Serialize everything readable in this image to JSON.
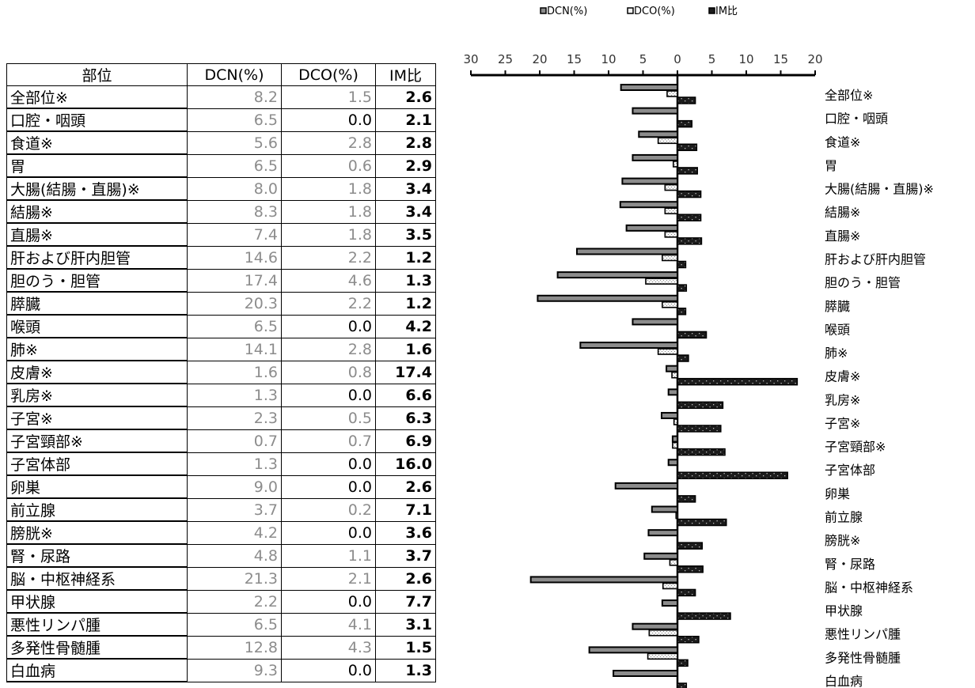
{
  "table": {
    "headers": [
      "部位",
      "DCN(%)",
      "DCO(%)",
      "IM比"
    ],
    "rows": [
      [
        "全部位※",
        "8.2",
        "1.5",
        "2.6"
      ],
      [
        "口腔・咽頭",
        "6.5",
        "0.0",
        "2.1"
      ],
      [
        "食道※",
        "5.6",
        "2.8",
        "2.8"
      ],
      [
        "胃",
        "6.5",
        "0.6",
        "2.9"
      ],
      [
        "大腸(結腸・直腸)※",
        "8.0",
        "1.8",
        "3.4"
      ],
      [
        "結腸※",
        "8.3",
        "1.8",
        "3.4"
      ],
      [
        "直腸※",
        "7.4",
        "1.8",
        "3.5"
      ],
      [
        "肝および肝内胆管",
        "14.6",
        "2.2",
        "1.2"
      ],
      [
        "胆のう・胆管",
        "17.4",
        "4.6",
        "1.3"
      ],
      [
        "膵臓",
        "20.3",
        "2.2",
        "1.2"
      ],
      [
        "喉頭",
        "6.5",
        "0.0",
        "4.2"
      ],
      [
        "肺※",
        "14.1",
        "2.8",
        "1.6"
      ],
      [
        "皮膚※",
        "1.6",
        "0.8",
        "17.4"
      ],
      [
        "乳房※",
        "1.3",
        "0.0",
        "6.6"
      ],
      [
        "子宮※",
        "2.3",
        "0.5",
        "6.3"
      ],
      [
        "子宮頸部※",
        "0.7",
        "0.7",
        "6.9"
      ],
      [
        "子宮体部",
        "1.3",
        "0.0",
        "16.0"
      ],
      [
        "卵巣",
        "9.0",
        "0.0",
        "2.6"
      ],
      [
        "前立腺",
        "3.7",
        "0.2",
        "7.1"
      ],
      [
        "膀胱※",
        "4.2",
        "0.0",
        "3.6"
      ],
      [
        "腎・尿路",
        "4.8",
        "1.1",
        "3.7"
      ],
      [
        "脳・中枢神経系",
        "21.3",
        "2.1",
        "2.6"
      ],
      [
        "甲状腺",
        "2.2",
        "0.0",
        "7.7"
      ],
      [
        "悪性リンパ腫",
        "6.5",
        "4.1",
        "3.1"
      ],
      [
        "多発性骨髄腫",
        "12.8",
        "4.3",
        "1.5"
      ],
      [
        "白血病",
        "9.3",
        "0.0",
        "1.3"
      ]
    ]
  },
  "chart_data": {
    "type": "bar",
    "orientation": "horizontal",
    "categories": [
      "全部位※",
      "口腔・咽頭",
      "食道※",
      "胃",
      "大腸(結腸・直腸)※",
      "結腸※",
      "直腸※",
      "肝および肝内胆管",
      "胆のう・胆管",
      "膵臓",
      "喉頭",
      "肺※",
      "皮膚※",
      "乳房※",
      "子宮※",
      "子宮頸部※",
      "子宮体部",
      "卵巣",
      "前立腺",
      "膀胱※",
      "腎・尿路",
      "脳・中枢神経系",
      "甲状腺",
      "悪性リンパ腫",
      "多発性骨髄腫",
      "白血病"
    ],
    "series": [
      {
        "name": "DCN(%)",
        "direction": "left",
        "color": "#8c8c8c",
        "values": [
          8.2,
          6.5,
          5.6,
          6.5,
          8.0,
          8.3,
          7.4,
          14.6,
          17.4,
          20.3,
          6.5,
          14.1,
          1.6,
          1.3,
          2.3,
          0.7,
          1.3,
          9.0,
          3.7,
          4.2,
          4.8,
          21.3,
          2.2,
          6.5,
          12.8,
          9.3
        ]
      },
      {
        "name": "DCO(%)",
        "direction": "left",
        "color": "#f2f2f2",
        "values": [
          1.5,
          0.0,
          2.8,
          0.6,
          1.8,
          1.8,
          1.8,
          2.2,
          4.6,
          2.2,
          0.0,
          2.8,
          0.8,
          0.0,
          0.5,
          0.7,
          0.0,
          0.0,
          0.2,
          0.0,
          1.1,
          2.1,
          0.0,
          4.1,
          4.3,
          0.0
        ]
      },
      {
        "name": "IM比",
        "direction": "right",
        "color": "#1a1a1a",
        "values": [
          2.6,
          2.1,
          2.8,
          2.9,
          3.4,
          3.4,
          3.5,
          1.2,
          1.3,
          1.2,
          4.2,
          1.6,
          17.4,
          6.6,
          6.3,
          6.9,
          16.0,
          2.6,
          7.1,
          3.6,
          3.7,
          2.6,
          7.7,
          3.1,
          1.5,
          1.3
        ]
      }
    ],
    "xlim_left": [
      0,
      30
    ],
    "xlim_right": [
      0,
      20
    ],
    "tick_labels": [
      "30",
      "25",
      "20",
      "15",
      "10",
      "5",
      "0",
      "5",
      "10",
      "15",
      "20"
    ],
    "legend": [
      "DCN(%)",
      "DCO(%)",
      "IM比"
    ],
    "legend_position": "top",
    "grid": false
  }
}
